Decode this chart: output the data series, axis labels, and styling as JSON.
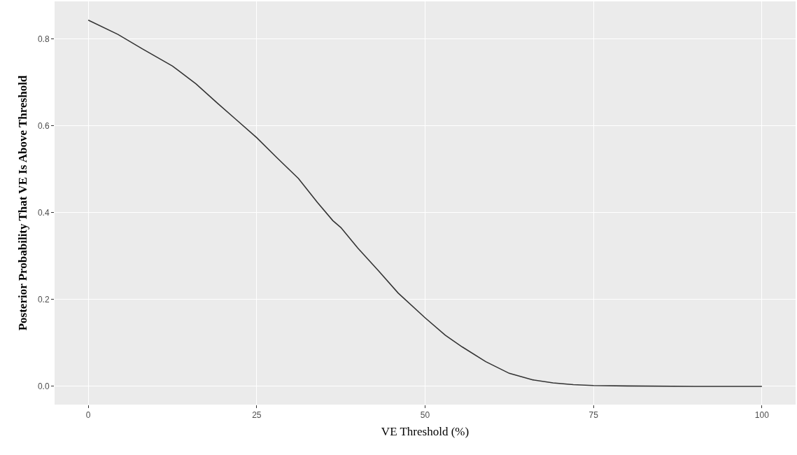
{
  "chart_data": {
    "type": "line",
    "xlabel": "VE Threshold (%)",
    "ylabel": "Posterior Probability That VE Is Above Threshold",
    "x": [
      0,
      4.4,
      8,
      12.5,
      16,
      19.2,
      22,
      25,
      28,
      31.2,
      34,
      36.3,
      37.5,
      40,
      43.1,
      46,
      50,
      53,
      55.5,
      59,
      62.5,
      66,
      69,
      72,
      75,
      80,
      90,
      100
    ],
    "series": [
      {
        "color": "#333333",
        "values": [
          0.844,
          0.811,
          0.778,
          0.738,
          0.697,
          0.652,
          0.614,
          0.573,
          0.527,
          0.479,
          0.424,
          0.382,
          0.366,
          0.319,
          0.266,
          0.215,
          0.158,
          0.118,
          0.091,
          0.057,
          0.03,
          0.015,
          0.008,
          0.004,
          0.002,
          0.001,
          0,
          0
        ]
      }
    ],
    "xlim": [
      -5,
      105
    ],
    "ylim": [
      -0.042,
      0.887
    ],
    "xticks": [
      0,
      25,
      50,
      75,
      100
    ],
    "yticks": [
      {
        "value": 0,
        "label": "0.0"
      },
      {
        "value": 0.2,
        "label": "0.2"
      },
      {
        "value": 0.4,
        "label": "0.4"
      },
      {
        "value": 0.6,
        "label": "0.6"
      },
      {
        "value": 0.8,
        "label": "0.8"
      }
    ],
    "grid": true,
    "marker": "none",
    "line_style": "solid"
  }
}
